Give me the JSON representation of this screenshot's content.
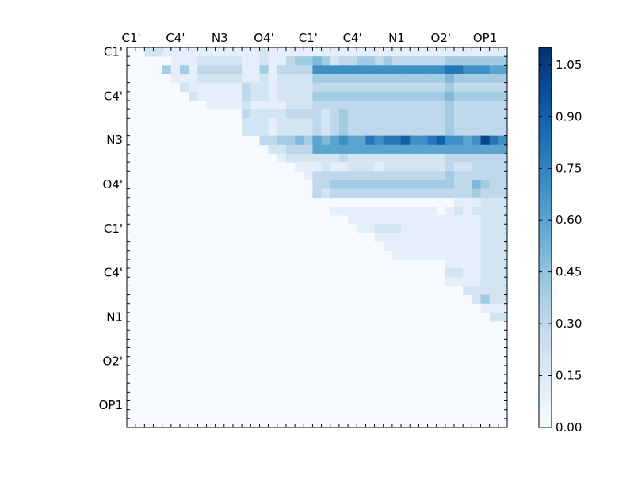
{
  "chart_data": {
    "type": "heatmap",
    "title": "",
    "xlabel": "",
    "ylabel": "",
    "colormap": "Blues",
    "n": 43,
    "x_tick_labels": [
      "C1'",
      "C4'",
      "N3",
      "O4'",
      "C1'",
      "C4'",
      "N1",
      "O2'",
      "OP1"
    ],
    "y_tick_labels": [
      "C1'",
      "C4'",
      "N3",
      "O4'",
      "C1'",
      "C4'",
      "N1",
      "O2'",
      "OP1"
    ],
    "tick_positions": [
      0.5,
      5.5,
      10.5,
      15.5,
      20.5,
      25.5,
      30.5,
      35.5,
      40.5
    ],
    "colorbar": {
      "min": 0.0,
      "max": 1.1,
      "tick_values": [
        0.0,
        0.15,
        0.3,
        0.45,
        0.6,
        0.75,
        0.9,
        1.05
      ],
      "tick_labels": [
        "0.00",
        "0.15",
        "0.30",
        "0.45",
        "0.60",
        "0.75",
        "0.90",
        "1.05"
      ]
    },
    "matrix": "upper-triangular; values (0–1.1) approximated from color intensity, see rows",
    "rows": [
      "0 0 2 2 1 1 1 1 1 1 1 1 1 1 1 2 1 1 1 1 1 1 1 1 1 1 1 1 1 1 1 1 1 1 1 1 1 1 1 1 1 1 1",
      "0 0 0 0 0 1 1 1 2 2 2 2 2 1 1 2 1 1 3 4 4 5 4 2 3 3 4 4 3 4 3 3 3 3 3 3 4 4 4 4 4 4 4",
      "0 0 0 0 4 1 4 1 3 3 3 3 3 1 1 4 1 3 3 3 3 7 7 7 7 7 7 7 7 7 7 7 7 7 7 7 8 8 7 7 7 6 6",
      "0 0 0 0 0 1 1 1 2 2 2 2 2 1 1 2 1 2 2 2 2 4 4 4 4 4 4 4 4 4 4 4 4 4 4 4 5 4 4 4 4 4 4",
      "0 0 0 0 0 0 2 1 1 1 1 1 1 3 2 2 1 2 2 2 2 3 3 3 3 3 3 3 3 3 3 3 3 3 3 3 4 3 3 3 3 3 3",
      "0 0 0 0 0 0 0 2 1 1 1 1 1 3 2 2 1 2 2 2 2 4 4 4 4 4 4 4 4 4 4 4 4 4 4 4 5 4 4 4 4 4 4",
      "0 0 0 0 0 0 0 0 0 1 1 1 1 2 1 1 1 1 2 2 2 3 3 3 3 3 3 3 3 3 3 3 3 3 3 3 4 3 3 3 3 3 3",
      "0 0 0 0 0 0 0 0 0 0 0 0 0 3 2 2 2 2 3 3 3 3 2 3 4 3 3 3 3 3 3 3 3 3 3 3 4 3 3 3 3 3 3",
      "0 0 0 0 0 0 0 0 0 0 0 0 0 2 2 2 1 2 2 2 2 3 2 3 4 3 3 3 3 3 3 3 3 3 3 3 4 3 3 3 3 3 3",
      "0 0 0 0 0 0 0 0 0 0 0 0 0 2 2 2 1 2 2 2 2 3 2 3 4 3 3 3 3 3 3 3 3 3 3 3 4 3 3 3 3 3 3",
      "0 0 0 0 0 0 0 0 0 0 0 0 0 0 0 3 3 4 4 5 4 6 5 6 7 6 6 8 7 8 8 9 7 7 8 9 7 7 6 7 10 8 7",
      "0 0 0 0 0 0 0 0 0 0 0 0 0 0 0 0 2 2 3 3 3 6 6 6 6 6 6 6 6 6 6 6 6 6 6 6 6 6 6 6 6 6 6",
      "0 0 0 0 0 0 0 0 0 0 0 0 0 0 0 0 0 1 2 2 2 2 2 2 3 2 2 2 2 2 2 2 2 2 2 2 3 3 3 3 3 3 3",
      "0 0 0 0 0 0 0 0 0 0 0 0 0 0 0 0 0 0 0 1 1 1 2 1 1 2 2 2 1 2 2 2 2 2 2 2 3 2 2 3 3 3 3",
      "0 0 0 0 0 0 0 0 0 0 0 0 0 0 0 0 0 0 0 0 1 3 3 3 3 3 3 3 3 3 3 3 3 3 3 3 4 3 3 3 3 3 3",
      "0 0 0 0 0 0 0 0 0 0 0 0 0 0 0 0 0 0 0 0 0 3 3 4 4 4 4 4 4 4 4 4 4 4 4 4 4 3 3 5 4 3 3",
      "0 0 0 0 0 0 0 0 0 0 0 0 0 0 0 0 0 0 0 0 0 3 2 3 3 3 3 3 3 3 3 3 3 3 3 3 3 3 3 4 3 3 3",
      "0 0 0 0 0 0 0 0 0 0 0 0 0 0 0 0 0 0 0 0 0 0 0 0 0 0 0 0 0 0 0 0 0 0 0 0 0 1 1 1 2 2 2",
      "0 0 0 0 0 0 0 0 0 0 0 0 0 0 0 0 0 0 0 0 0 0 0 1 1 1 1 1 1 1 1 1 1 1 1 0 1 2 1 2 2 2 2",
      "0 0 0 0 0 0 0 0 0 0 0 0 0 0 0 0 0 0 0 0 0 0 0 0 0 1 1 1 1 1 1 1 1 1 1 1 1 1 1 1 2 2 2",
      "0 0 0 0 0 0 0 0 0 0 0 0 0 0 0 0 0 0 0 0 0 0 0 0 0 0 1 1 2 2 2 1 1 1 1 1 1 1 1 1 2 2 2",
      "0 0 0 0 0 0 0 0 0 0 0 0 0 0 0 0 0 0 0 0 0 0 0 0 0 0 0 0 1 1 1 1 1 1 1 1 1 1 1 1 2 2 2",
      "0 0 0 0 0 0 0 0 0 0 0 0 0 0 0 0 0 0 0 0 0 0 0 0 0 0 0 0 0 1 1 1 1 1 1 1 1 1 1 1 2 2 2",
      "0 0 0 0 0 0 0 0 0 0 0 0 0 0 0 0 0 0 0 0 0 0 0 0 0 0 0 0 0 0 1 1 1 1 1 1 1 1 1 1 2 2 2",
      "0 0 0 0 0 0 0 0 0 0 0 0 0 0 0 0 0 0 0 0 0 0 0 0 0 0 0 0 0 0 0 0 0 0 0 0 1 1 1 1 2 2 2",
      "0 0 0 0 0 0 0 0 0 0 0 0 0 0 0 0 0 0 0 0 0 0 0 0 0 0 0 0 0 0 0 0 0 0 0 0 2 2 1 1 2 2 2",
      "0 0 0 0 0 0 0 0 0 0 0 0 0 0 0 0 0 0 0 0 0 0 0 0 0 0 0 0 0 0 0 0 0 0 0 0 1 1 1 1 2 2 2",
      "0 0 0 0 0 0 0 0 0 0 0 0 0 0 0 0 0 0 0 0 0 0 0 0 0 0 0 0 0 0 0 0 0 0 0 0 0 0 2 2 2 2 2",
      "0 0 0 0 0 0 0 0 0 0 0 0 0 0 0 0 0 0 0 0 0 0 0 0 0 0 0 0 0 0 0 0 0 0 0 0 0 0 0 2 4 2 2",
      "0 0 0 0 0 0 0 0 0 0 0 0 0 0 0 0 0 0 0 0 0 0 0 0 0 0 0 0 0 0 0 0 0 0 0 0 0 0 0 0 1 1 1",
      "0 0 0 0 0 0 0 0 0 0 0 0 0 0 0 0 0 0 0 0 0 0 0 0 0 0 0 0 0 0 0 0 0 0 0 0 0 0 0 0 0 2 2"
    ]
  }
}
